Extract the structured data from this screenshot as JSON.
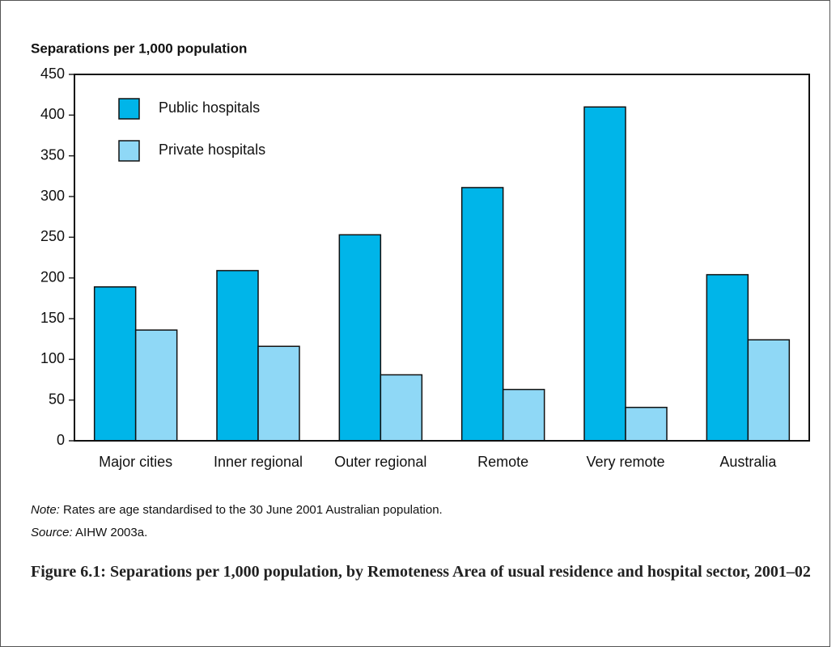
{
  "chart_data": {
    "type": "bar",
    "y_axis_title": "Separations per 1,000 population",
    "categories": [
      "Major cities",
      "Inner regional",
      "Outer regional",
      "Remote",
      "Very remote",
      "Australia"
    ],
    "series": [
      {
        "name": "Public hospitals",
        "color": "#00b5e9",
        "values": [
          189,
          209,
          253,
          311,
          410,
          204
        ]
      },
      {
        "name": "Private hospitals",
        "color": "#8fd8f6",
        "values": [
          136,
          116,
          81,
          63,
          41,
          124
        ]
      }
    ],
    "ylim": [
      0,
      450
    ],
    "yticks": [
      0,
      50,
      100,
      150,
      200,
      250,
      300,
      350,
      400,
      450
    ],
    "legend": "upper-left"
  },
  "note": {
    "label": "Note:",
    "text": "Rates are age standardised to the 30 June 2001 Australian population."
  },
  "source": {
    "label": "Source:",
    "text": "AIHW 2003a."
  },
  "caption": "Figure 6.1: Separations per 1,000 population, by Remoteness Area of usual residence and hospital sector, 2001–02"
}
